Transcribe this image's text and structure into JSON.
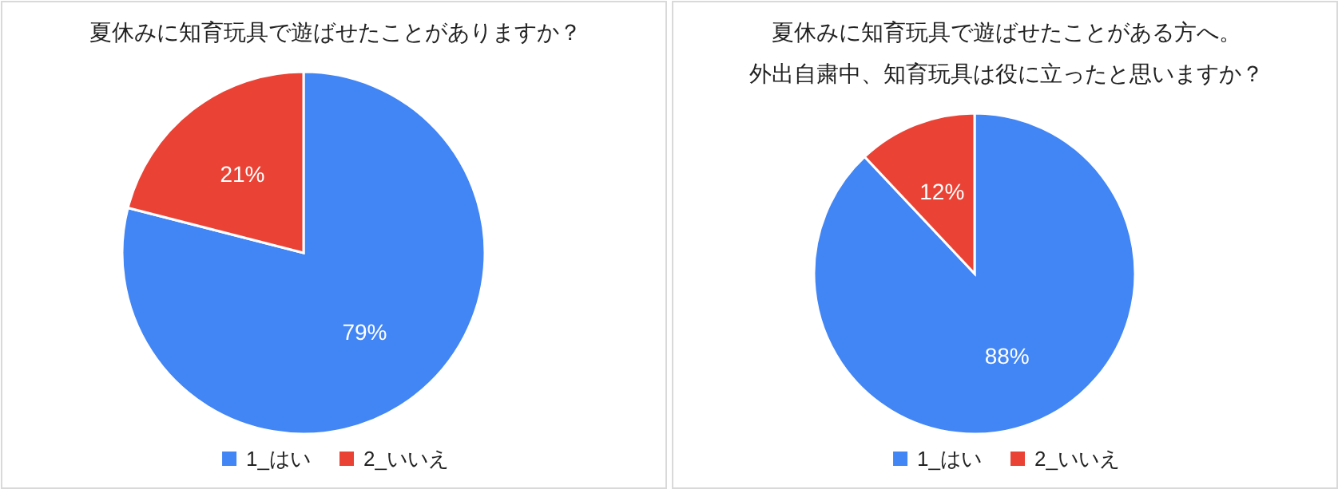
{
  "chart_data": [
    {
      "type": "pie",
      "title": "夏休みに知育玩具で遊ばせたことがありますか？",
      "categories": [
        "1_はい",
        "2_いいえ"
      ],
      "values": [
        79,
        21
      ],
      "colors": [
        "#4285f4",
        "#ea4335"
      ],
      "value_labels": [
        "79%",
        "21%"
      ],
      "legend": "bottom"
    },
    {
      "type": "pie",
      "title": "夏休みに知育玩具で遊ばせたことがある方へ。",
      "subtitle": "外出自粛中、知育玩具は役に立ったと思いますか？",
      "categories": [
        "1_はい",
        "2_いいえ"
      ],
      "values": [
        88,
        12
      ],
      "colors": [
        "#4285f4",
        "#ea4335"
      ],
      "value_labels": [
        "88%",
        "12%"
      ],
      "legend": "bottom"
    }
  ]
}
